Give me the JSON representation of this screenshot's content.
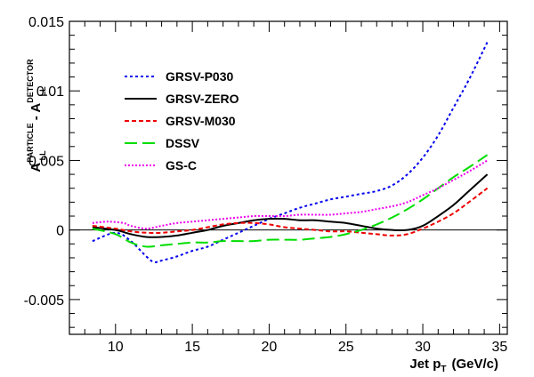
{
  "chart_data": {
    "type": "line",
    "xlim": [
      7,
      35.5
    ],
    "ylim": [
      -0.0075,
      0.015
    ],
    "x_ticks": [
      {
        "value": 10,
        "label": "10"
      },
      {
        "value": 15,
        "label": "15"
      },
      {
        "value": 20,
        "label": "20"
      },
      {
        "value": 25,
        "label": "25"
      },
      {
        "value": 30,
        "label": "30"
      },
      {
        "value": 35,
        "label": "35"
      }
    ],
    "y_ticks": [
      {
        "value": -0.005,
        "label": "-0.005"
      },
      {
        "value": 0,
        "label": "0"
      },
      {
        "value": 0.005,
        "label": "0.005"
      },
      {
        "value": 0.01,
        "label": "0.01"
      },
      {
        "value": 0.015,
        "label": "0.015"
      }
    ],
    "xlabel": {
      "main": "Jet p",
      "sub": "T",
      "unit": "(GeV/c)"
    },
    "ylabel": {
      "a1": "A",
      "a1_sub": "LL",
      "a1_sup": "PARTICLE",
      "sep": " - ",
      "a2": "A",
      "a2_sub": "LL",
      "a2_sup": "DETECTOR"
    },
    "grid": false,
    "zero_line": true,
    "legend_position": "top-left",
    "series": [
      {
        "name": "GRSV-P030",
        "color": "#0000ee",
        "dash": "3,3",
        "x": [
          8.5,
          10,
          11,
          12,
          12.5,
          13,
          14,
          15,
          16,
          17,
          18,
          19,
          20,
          21,
          22,
          23,
          24,
          25,
          26,
          27,
          28,
          29,
          30,
          31,
          32,
          33,
          34.2
        ],
        "y": [
          -0.0008,
          -0.0002,
          -0.0008,
          -0.0019,
          -0.0023,
          -0.0022,
          -0.0019,
          -0.0015,
          -0.0012,
          -0.0007,
          -0.0002,
          0.0003,
          0.0008,
          0.0012,
          0.0016,
          0.0019,
          0.0022,
          0.0024,
          0.0026,
          0.0028,
          0.0032,
          0.004,
          0.0052,
          0.0068,
          0.0088,
          0.0108,
          0.0135
        ]
      },
      {
        "name": "GRSV-ZERO",
        "color": "#000000",
        "dash": "",
        "x": [
          8.5,
          10,
          11,
          12,
          13,
          14,
          15,
          16,
          17,
          18,
          19,
          20,
          21,
          22,
          23,
          24,
          25,
          26,
          27,
          28,
          29,
          30,
          31,
          32,
          33,
          34.2
        ],
        "y": [
          0.0002,
          0.0,
          -0.0003,
          -0.0005,
          -0.0005,
          -0.0004,
          -0.0002,
          0.0,
          0.0003,
          0.0005,
          0.0007,
          0.0008,
          0.0008,
          0.0007,
          0.0007,
          0.0006,
          0.0005,
          0.0003,
          0.0001,
          0.0,
          0.0,
          0.0003,
          0.001,
          0.0018,
          0.0028,
          0.004
        ]
      },
      {
        "name": "GRSV-M030",
        "color": "#ee0000",
        "dash": "5,3",
        "x": [
          8.5,
          10,
          11,
          12,
          13,
          14,
          15,
          16,
          17,
          18,
          19,
          20,
          21,
          22,
          23,
          24,
          25,
          26,
          27,
          28,
          29,
          30,
          31,
          32,
          33,
          34.2
        ],
        "y": [
          0.0003,
          0.0001,
          -0.0001,
          -0.0002,
          -0.0002,
          -0.0001,
          0.0,
          0.0002,
          0.0004,
          0.0005,
          0.0005,
          0.0004,
          0.0002,
          0.0001,
          0.0,
          -0.0001,
          -0.0001,
          -0.0002,
          -0.0003,
          -0.0004,
          -0.0003,
          0.0001,
          0.0006,
          0.0012,
          0.002,
          0.003
        ]
      },
      {
        "name": "DSSV",
        "color": "#00dd00",
        "dash": "14,6",
        "x": [
          8.5,
          10,
          11,
          12,
          13,
          14,
          15,
          16,
          17,
          18,
          19,
          20,
          21,
          22,
          23,
          24,
          25,
          26,
          27,
          28,
          29,
          30,
          31,
          32,
          33,
          34.2
        ],
        "y": [
          0.0001,
          -0.0003,
          -0.0009,
          -0.0012,
          -0.0011,
          -0.001,
          -0.0009,
          -0.0009,
          -0.0008,
          -0.0008,
          -0.0008,
          -0.0007,
          -0.0007,
          -0.0007,
          -0.0006,
          -0.0005,
          -0.0003,
          0.0,
          0.0004,
          0.0009,
          0.0015,
          0.0022,
          0.003,
          0.0038,
          0.0045,
          0.0054
        ]
      },
      {
        "name": "GS-C",
        "color": "#ee00ee",
        "dash": "2,2",
        "x": [
          8.5,
          9.5,
          10.5,
          11,
          12,
          13,
          14,
          15,
          16,
          17,
          18,
          19,
          20,
          21,
          22,
          23,
          24,
          25,
          26,
          27,
          28,
          29,
          30,
          31,
          32,
          33,
          34.2
        ],
        "y": [
          0.0005,
          0.0006,
          0.0005,
          0.0003,
          0.0001,
          0.0003,
          0.0005,
          0.0006,
          0.0007,
          0.0008,
          0.0009,
          0.001,
          0.001,
          0.001,
          0.0011,
          0.0011,
          0.0011,
          0.0012,
          0.0013,
          0.0015,
          0.0017,
          0.002,
          0.0025,
          0.003,
          0.0036,
          0.0042,
          0.005
        ]
      }
    ]
  }
}
